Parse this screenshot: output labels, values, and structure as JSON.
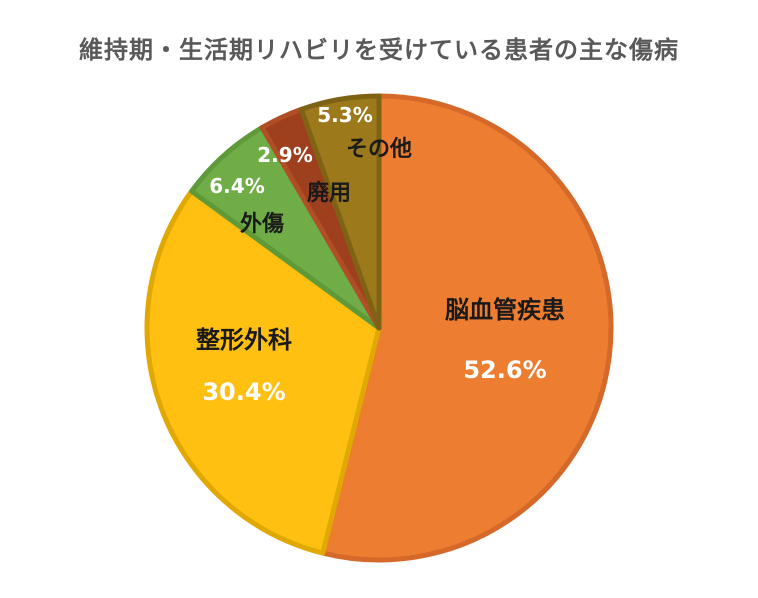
{
  "chart_data": {
    "type": "pie",
    "title": "維持期・生活期リハビリを受けている患者の主な傷病",
    "slices": [
      {
        "name": "脳血管疾患",
        "value": 52.6,
        "value_label": "52.6%",
        "color": "#ED7D31",
        "edge": "#D4692A",
        "name_color": "#1a1a1a",
        "value_color": "#ffffff"
      },
      {
        "name": "整形外科",
        "value": 30.4,
        "value_label": "30.4%",
        "color": "#FFC012",
        "edge": "#E0A800",
        "name_color": "#1a1a1a",
        "value_color": "#ffffff"
      },
      {
        "name": "外傷",
        "value": 6.4,
        "value_label": "6.4%",
        "color": "#70AD47",
        "edge": "#5E9A3A",
        "name_color": "#1a1a1a",
        "value_color": "#ffffff"
      },
      {
        "name": "廃用",
        "value": 2.9,
        "value_label": "2.9%",
        "color": "#9E3F1E",
        "edge": "#B14E25",
        "name_color": "#1a1a1a",
        "value_color": "#ffffff"
      },
      {
        "name": "その他",
        "value": 5.3,
        "value_label": "5.3%",
        "color": "#9C7A1C",
        "edge": "#7F6315",
        "name_color": "#1a1a1a",
        "value_color": "#ffffff"
      }
    ]
  }
}
